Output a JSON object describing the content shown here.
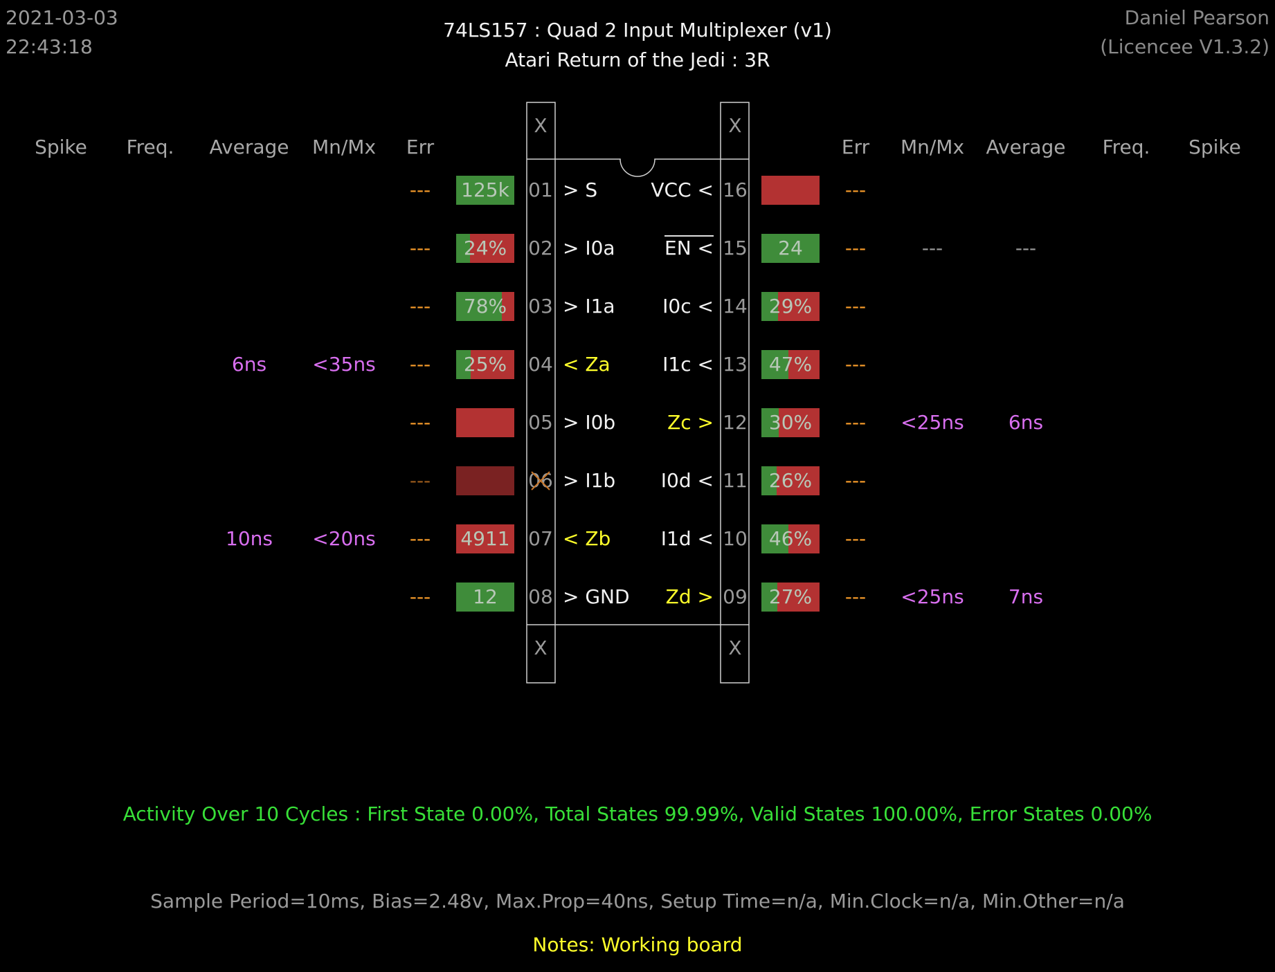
{
  "header": {
    "date": "2021-03-03",
    "time": "22:43:18",
    "title": "74LS157  :  Quad 2 Input Multiplexer (v1)",
    "subtitle": "Atari Return of the Jedi : 3R",
    "owner": "Daniel Pearson",
    "licence": "(Licencee V1.3.2)"
  },
  "columns": {
    "left": [
      "Spike",
      "Freq.",
      "Average",
      "Mn/Mx",
      "Err"
    ],
    "right": [
      "Err",
      "Mn/Mx",
      "Average",
      "Freq.",
      "Spike"
    ]
  },
  "chip": {
    "unused_marker": "X",
    "left_pins": [
      {
        "num": "01",
        "name": "> S",
        "err": "---",
        "box": "125k",
        "high_fraction": 1.0,
        "average": "",
        "mnmx": ""
      },
      {
        "num": "02",
        "name": "> I0a",
        "err": "---",
        "box": "24%",
        "high_fraction": 0.24,
        "average": "",
        "mnmx": ""
      },
      {
        "num": "03",
        "name": "> I1a",
        "err": "---",
        "box": "78%",
        "high_fraction": 0.78,
        "average": "",
        "mnmx": ""
      },
      {
        "num": "04",
        "name": "< Za",
        "err": "---",
        "box": "25%",
        "high_fraction": 0.25,
        "average": "6ns",
        "mnmx": "<35ns"
      },
      {
        "num": "05",
        "name": "> I0b",
        "err": "---",
        "box": "",
        "high_fraction": 0.0,
        "average": "",
        "mnmx": ""
      },
      {
        "num": "06",
        "name": "> I1b",
        "err": "---",
        "box": "",
        "high_fraction": 0.0,
        "average": "",
        "mnmx": ""
      },
      {
        "num": "07",
        "name": "< Zb",
        "err": "---",
        "box": "4911",
        "high_fraction": 0.0,
        "average": "10ns",
        "mnmx": "<20ns"
      },
      {
        "num": "08",
        "name": "> GND",
        "err": "---",
        "box": "12",
        "high_fraction": 1.0,
        "average": "",
        "mnmx": ""
      }
    ],
    "right_pins": [
      {
        "num": "16",
        "name": "VCC <",
        "err": "---",
        "box": "",
        "high_fraction": 0.0,
        "mnmx": "",
        "average": ""
      },
      {
        "num": "15",
        "name": "EN <",
        "err": "---",
        "box": "24",
        "high_fraction": 1.0,
        "mnmx": "---",
        "average": "---"
      },
      {
        "num": "14",
        "name": "I0c <",
        "err": "---",
        "box": "29%",
        "high_fraction": 0.29,
        "mnmx": "",
        "average": ""
      },
      {
        "num": "13",
        "name": "I1c <",
        "err": "---",
        "box": "47%",
        "high_fraction": 0.47,
        "mnmx": "",
        "average": ""
      },
      {
        "num": "12",
        "name": "Zc >",
        "err": "---",
        "box": "30%",
        "high_fraction": 0.3,
        "mnmx": "<25ns",
        "average": "6ns"
      },
      {
        "num": "11",
        "name": "I0d <",
        "err": "---",
        "box": "26%",
        "high_fraction": 0.26,
        "mnmx": "",
        "average": ""
      },
      {
        "num": "10",
        "name": "I1d <",
        "err": "---",
        "box": "46%",
        "high_fraction": 0.46,
        "mnmx": "",
        "average": ""
      },
      {
        "num": "09",
        "name": "Zd >",
        "err": "---",
        "box": "27%",
        "high_fraction": 0.27,
        "mnmx": "<25ns",
        "average": "7ns"
      }
    ]
  },
  "footer": {
    "activity": "Activity Over 10 Cycles  :  First State 0.00%,  Total States 99.99%,  Valid States 100.00%,  Error States 0.00%",
    "params": "Sample Period=10ms,  Bias=2.48v,  Max.Prop=40ns,  Setup Time=n/a,  Min.Clock=n/a,  Min.Other=n/a",
    "notes": "Notes:  Working board"
  },
  "colors": {
    "background": "#000000",
    "high_green": "#3f8c3a",
    "low_red": "#b33232",
    "error_orange": "#f59a2a",
    "timing_magenta": "#d96ff0",
    "output_yellow": "#ffff2a",
    "activity_green": "#38e038"
  }
}
